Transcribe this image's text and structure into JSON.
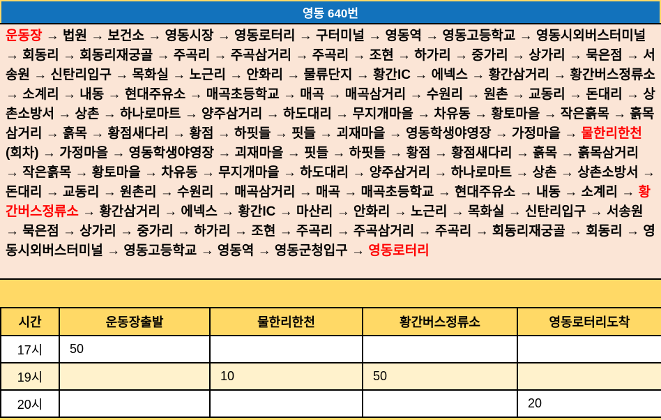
{
  "header": {
    "title": "영동 640번",
    "bg_color": "#1272BC",
    "text_color": "#FFFFFF"
  },
  "route": {
    "arrow": "→",
    "highlight_color": "#FF0000",
    "box_bg_color": "#FBE5D6",
    "stops": [
      {
        "n": "운동장",
        "red": true
      },
      {
        "n": "법원"
      },
      {
        "n": "보건소"
      },
      {
        "n": "영동시장"
      },
      {
        "n": "영동로터리"
      },
      {
        "n": "구터미널"
      },
      {
        "n": "영동역"
      },
      {
        "n": "영동고등학교"
      },
      {
        "n": "영동시외버스터미널"
      },
      {
        "n": "회동리"
      },
      {
        "n": "회동리재궁골"
      },
      {
        "n": "주곡리"
      },
      {
        "n": "주곡삼거리"
      },
      {
        "n": "주곡리"
      },
      {
        "n": "조현"
      },
      {
        "n": "하가리"
      },
      {
        "n": "중가리"
      },
      {
        "n": "상가리"
      },
      {
        "n": "묵은점"
      },
      {
        "n": "서송원"
      },
      {
        "n": "신탄리입구"
      },
      {
        "n": "목화실"
      },
      {
        "n": "노근리"
      },
      {
        "n": "안화리"
      },
      {
        "n": "물류단지"
      },
      {
        "n": "황간IC"
      },
      {
        "n": "에넥스"
      },
      {
        "n": "황간삼거리"
      },
      {
        "n": "황간버스정류소"
      },
      {
        "n": "소계리"
      },
      {
        "n": "내동"
      },
      {
        "n": "현대주유소"
      },
      {
        "n": "매곡초등학교"
      },
      {
        "n": "매곡"
      },
      {
        "n": "매곡삼거리"
      },
      {
        "n": "수원리"
      },
      {
        "n": "원촌"
      },
      {
        "n": "교동리"
      },
      {
        "n": "돈대리"
      },
      {
        "n": "상촌소방서"
      },
      {
        "n": "상촌"
      },
      {
        "n": "하나로마트"
      },
      {
        "n": "양주삼거리"
      },
      {
        "n": "하도대리"
      },
      {
        "n": "무지개마을"
      },
      {
        "n": "차유동"
      },
      {
        "n": "황토마을"
      },
      {
        "n": "작은흙목"
      },
      {
        "n": "흙목삼거리"
      },
      {
        "n": "흙목"
      },
      {
        "n": "황점새다리"
      },
      {
        "n": "황점"
      },
      {
        "n": "하핏들"
      },
      {
        "n": "핏들"
      },
      {
        "n": "괴재마을"
      },
      {
        "n": "영동학생야영장"
      },
      {
        "n": "가정마을"
      },
      {
        "n": "물한리한천",
        "red": true,
        "suffix": "(회차)"
      },
      {
        "n": "가정마을"
      },
      {
        "n": "영동학생야영장"
      },
      {
        "n": "괴재마을"
      },
      {
        "n": "핏들"
      },
      {
        "n": "하핏들"
      },
      {
        "n": "황점"
      },
      {
        "n": "황점새다리"
      },
      {
        "n": "흙목"
      },
      {
        "n": "흙목삼거리"
      },
      {
        "n": "작은흙목"
      },
      {
        "n": "황토마을"
      },
      {
        "n": "차유동"
      },
      {
        "n": "무지개마을"
      },
      {
        "n": "하도대리"
      },
      {
        "n": "양주삼거리"
      },
      {
        "n": "하나로마트"
      },
      {
        "n": "상촌"
      },
      {
        "n": "상촌소방서"
      },
      {
        "n": "돈대리"
      },
      {
        "n": "교동리"
      },
      {
        "n": "원촌리"
      },
      {
        "n": "수원리"
      },
      {
        "n": "매곡삼거리"
      },
      {
        "n": "매곡"
      },
      {
        "n": "매곡초등학교"
      },
      {
        "n": "현대주유소"
      },
      {
        "n": "내동"
      },
      {
        "n": "소계리"
      },
      {
        "n": "황간버스정류소",
        "red": true
      },
      {
        "n": "황간삼거리"
      },
      {
        "n": "에넥스"
      },
      {
        "n": "황간IC"
      },
      {
        "n": "마산리"
      },
      {
        "n": "안화리"
      },
      {
        "n": "노근리"
      },
      {
        "n": "목화실"
      },
      {
        "n": "신탄리입구"
      },
      {
        "n": "서송원"
      },
      {
        "n": "묵은점"
      },
      {
        "n": "상가리"
      },
      {
        "n": "중가리"
      },
      {
        "n": "하가리"
      },
      {
        "n": "조현"
      },
      {
        "n": "주곡리"
      },
      {
        "n": "주곡삼거리"
      },
      {
        "n": "주곡리"
      },
      {
        "n": "회동리재궁골"
      },
      {
        "n": "회동리"
      },
      {
        "n": "영동시외버스터미널"
      },
      {
        "n": "영동고등학교"
      },
      {
        "n": "영동역"
      },
      {
        "n": "영동군청입구"
      },
      {
        "n": "영동로터리",
        "red": true
      }
    ]
  },
  "timetable": {
    "header_bg_color": "#FFD966",
    "highlight_row_color": "#FFF2CC",
    "columns": [
      "시간",
      "운동장출발",
      "물한리한천",
      "황간버스정류소",
      "영동로터리도착"
    ],
    "rows": [
      {
        "time": "17시",
        "cells": [
          "50",
          "",
          "",
          ""
        ]
      },
      {
        "time": "19시",
        "cells": [
          "",
          "10",
          "50",
          ""
        ],
        "highlight": true
      },
      {
        "time": "20시",
        "cells": [
          "",
          "",
          "",
          "20"
        ]
      }
    ]
  }
}
